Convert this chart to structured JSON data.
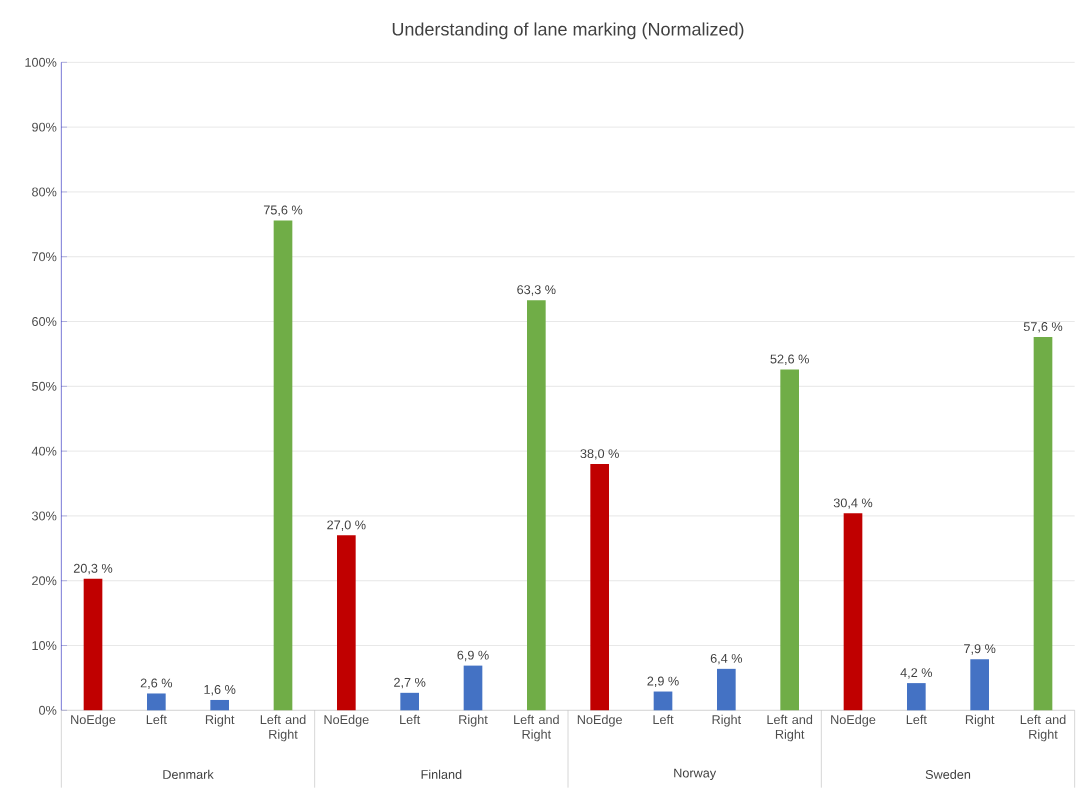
{
  "chart_data": {
    "type": "bar",
    "title": "Understanding of lane marking (Normalized)",
    "categories": [
      "NoEdge",
      "Left",
      "Right",
      "Left and Right",
      "NoEdge",
      "Left",
      "Right",
      "Left and Right",
      "NoEdge",
      "Left",
      "Right",
      "Left and Right",
      "NoEdge",
      "Left",
      "Right",
      "Left and Right"
    ],
    "values": [
      20.3,
      2.6,
      1.6,
      75.6,
      27.0,
      2.7,
      6.9,
      63.3,
      38.0,
      2.9,
      6.4,
      52.6,
      30.4,
      4.2,
      7.9,
      57.6
    ],
    "colors": [
      "#c00000",
      "#4472c4",
      "#4472c4",
      "#70ad47",
      "#c00000",
      "#4472c4",
      "#4472c4",
      "#70ad47",
      "#c00000",
      "#4472c4",
      "#4472c4",
      "#70ad47",
      "#c00000",
      "#4472c4",
      "#4472c4",
      "#70ad47"
    ],
    "value_labels": [
      "20,3 %",
      "2,6 %",
      "1,6 %",
      "75,6 %",
      "27,0 %",
      "2,7 %",
      "6,9 %",
      "63,3 %",
      "38,0 %",
      "2,9 %",
      "6,4 %",
      "52,6 %",
      "30,4 %",
      "4,2 %",
      "7,9 %",
      "57,6 %"
    ],
    "annotations": [
      "Denmark",
      "Finland",
      "Norway",
      "Sweden"
    ],
    "ylim": [
      0,
      100
    ],
    "yticks": [
      {
        "value": 0,
        "label": "0%"
      },
      {
        "value": 10,
        "label": "10%"
      },
      {
        "value": 20,
        "label": "20%"
      },
      {
        "value": 30,
        "label": "30%"
      },
      {
        "value": 40,
        "label": "40%"
      },
      {
        "value": 50,
        "label": "50%"
      },
      {
        "value": 60,
        "label": "60%"
      },
      {
        "value": 70,
        "label": "70%"
      },
      {
        "value": 80,
        "label": "80%"
      },
      {
        "value": 90,
        "label": "90%"
      },
      {
        "value": 100,
        "label": "100%"
      }
    ],
    "grid": "y"
  }
}
